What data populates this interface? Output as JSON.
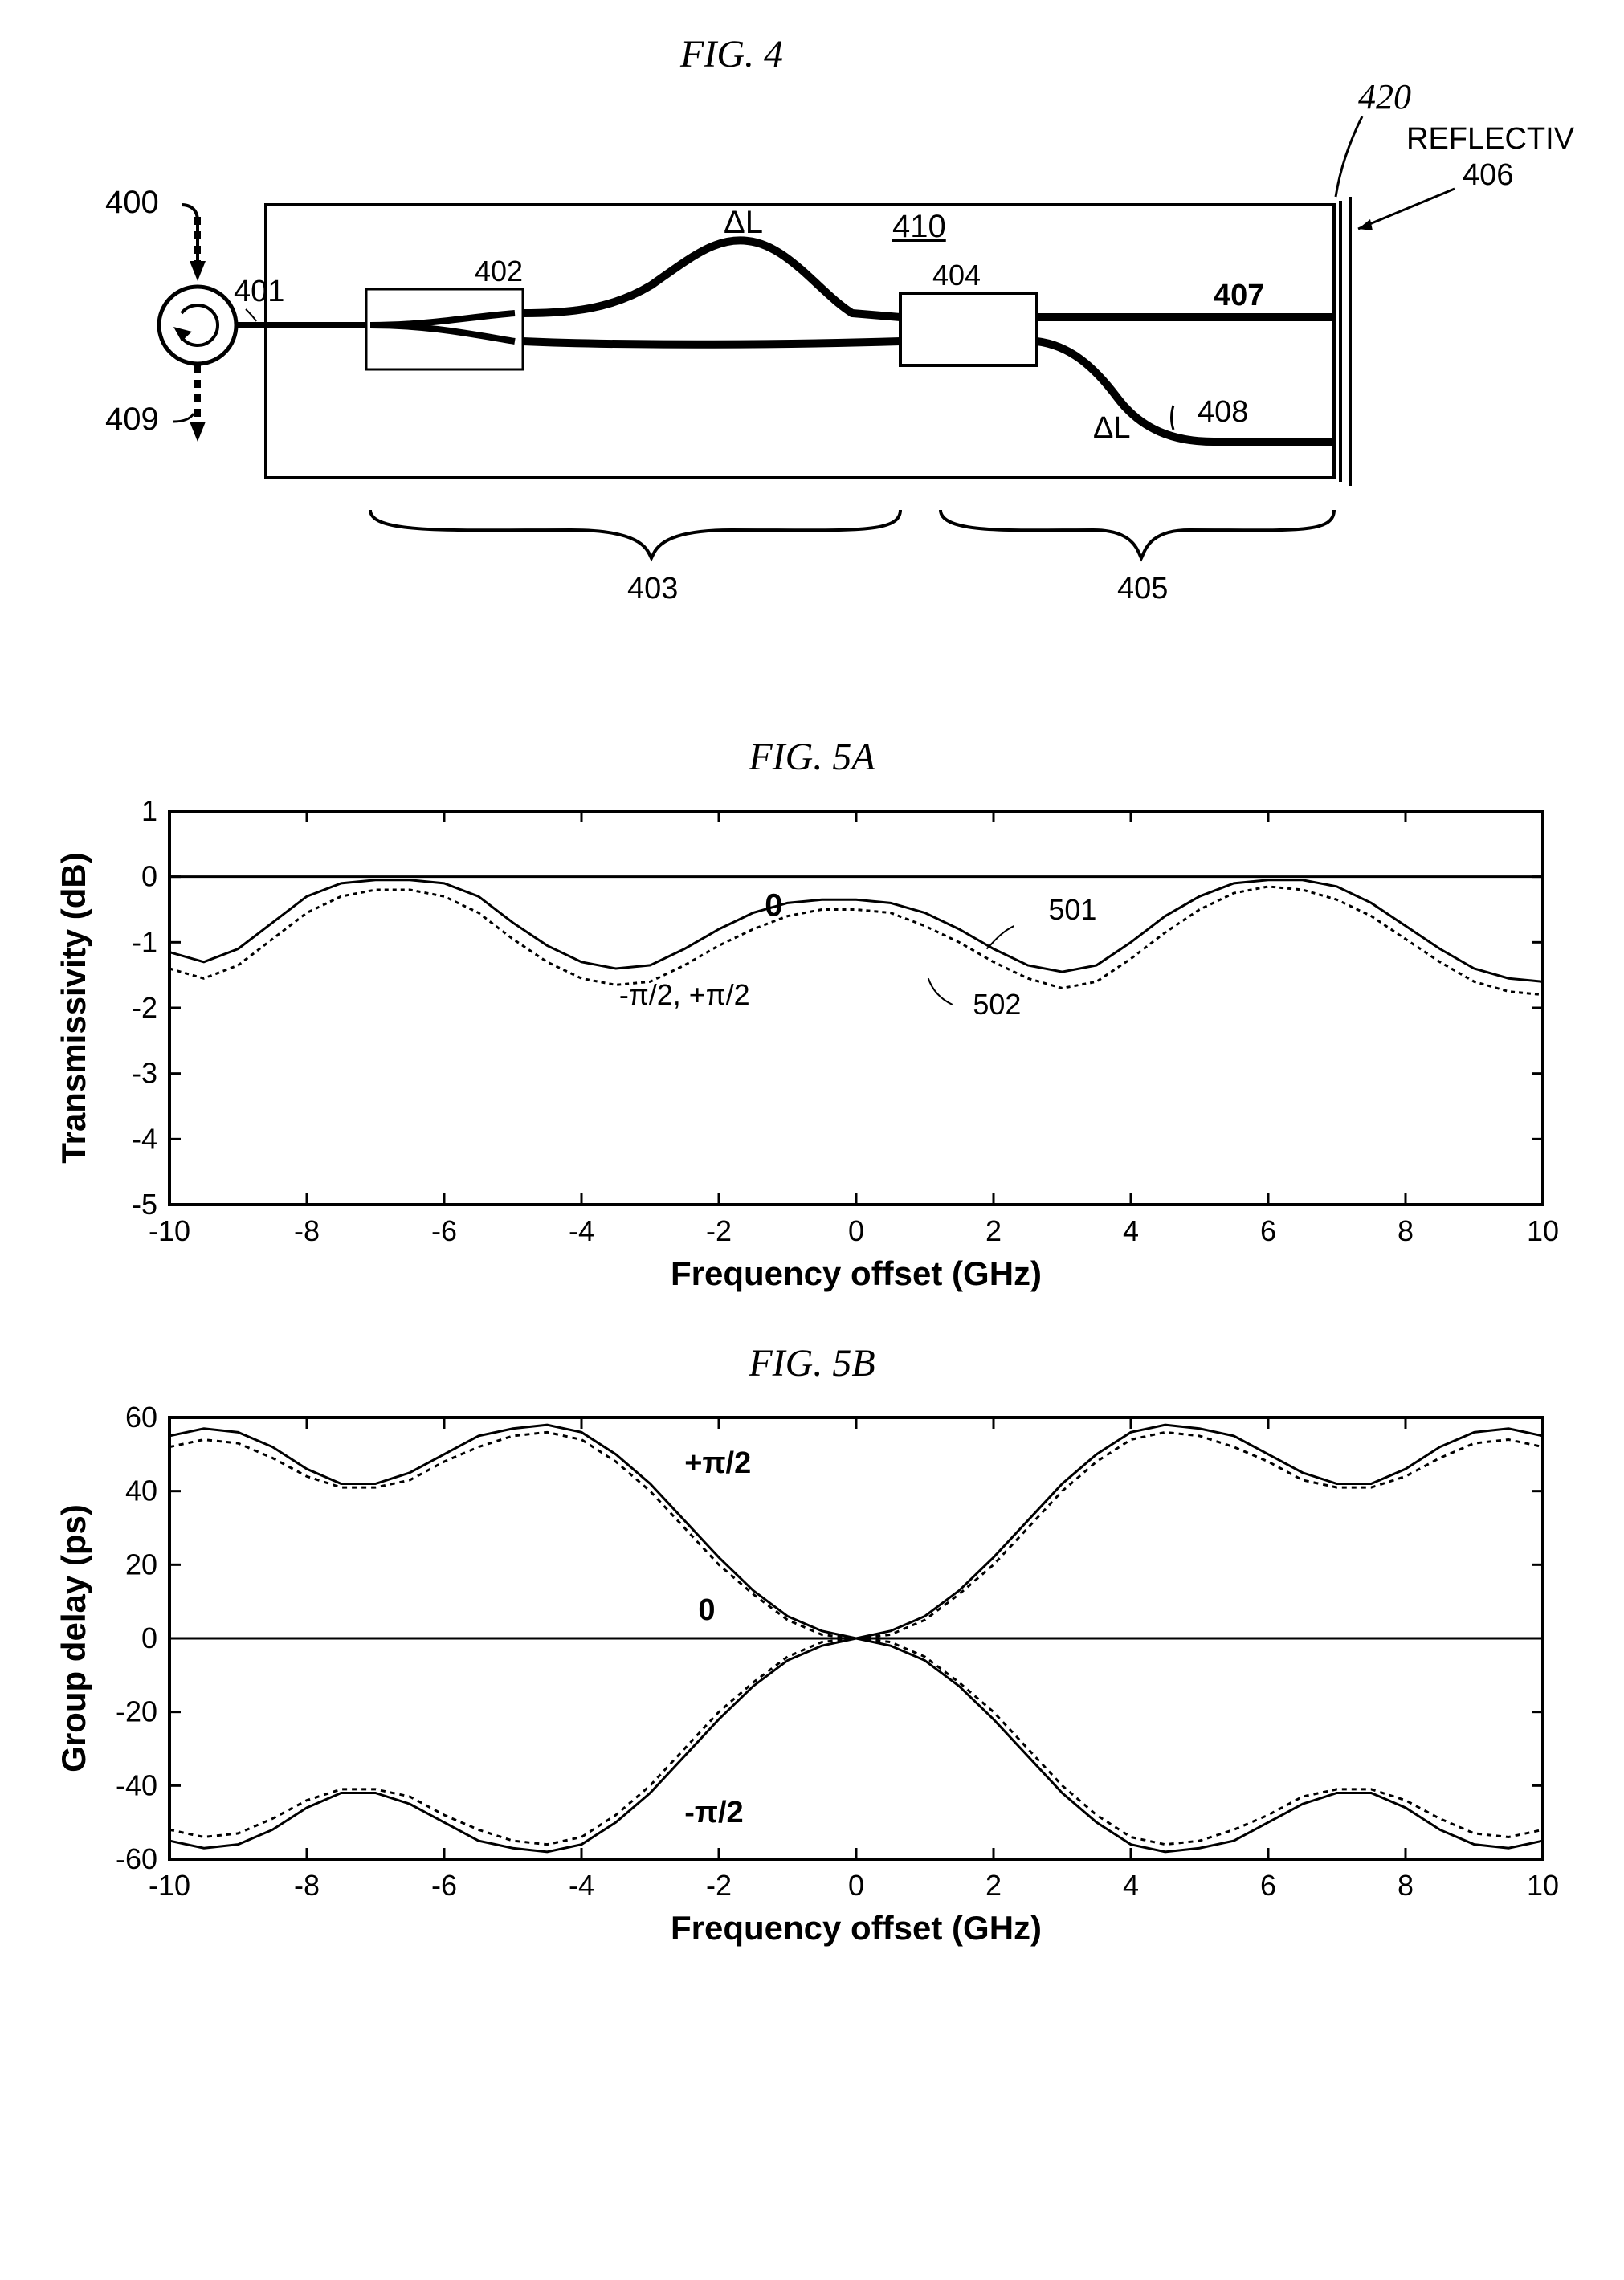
{
  "fig4": {
    "title": "FIG.  4",
    "labels": {
      "reflective_facet": "REFLECTIVE FACET",
      "reflective_facet_num": "406",
      "num_420": "420",
      "num_400": "400",
      "num_401": "401",
      "num_402": "402",
      "num_404": "404",
      "num_407": "407",
      "num_408": "408",
      "num_409": "409",
      "num_410": "410",
      "num_403": "403",
      "num_405": "405",
      "deltaL": "ΔL",
      "deltaL2": "ΔL"
    },
    "stroke_color": "#000000",
    "line_width_main": 8,
    "line_width_box": 3,
    "bg_color": "#ffffff"
  },
  "fig5a": {
    "title": "FIG. 5A",
    "xlabel": "Frequency offset (GHz)",
    "ylabel": "Transmissivity (dB)",
    "xlim": [
      -10,
      10
    ],
    "ylim": [
      -5,
      1
    ],
    "xtick_step": 2,
    "ytick_step": 1,
    "series": {
      "solid": {
        "label": "0",
        "color": "#000000",
        "dash": "none",
        "width": 3,
        "data": [
          [
            -10,
            -1.15
          ],
          [
            -9.5,
            -1.3
          ],
          [
            -9,
            -1.1
          ],
          [
            -8.5,
            -0.7
          ],
          [
            -8,
            -0.3
          ],
          [
            -7.5,
            -0.1
          ],
          [
            -7,
            -0.05
          ],
          [
            -6.5,
            -0.05
          ],
          [
            -6,
            -0.1
          ],
          [
            -5.5,
            -0.3
          ],
          [
            -5,
            -0.7
          ],
          [
            -4.5,
            -1.05
          ],
          [
            -4,
            -1.3
          ],
          [
            -3.5,
            -1.4
          ],
          [
            -3,
            -1.35
          ],
          [
            -2.5,
            -1.1
          ],
          [
            -2,
            -0.8
          ],
          [
            -1.5,
            -0.55
          ],
          [
            -1,
            -0.4
          ],
          [
            -0.5,
            -0.35
          ],
          [
            0,
            -0.35
          ],
          [
            0.5,
            -0.4
          ],
          [
            1,
            -0.55
          ],
          [
            1.5,
            -0.8
          ],
          [
            2,
            -1.1
          ],
          [
            2.5,
            -1.35
          ],
          [
            3,
            -1.45
          ],
          [
            3.5,
            -1.35
          ],
          [
            4,
            -1.0
          ],
          [
            4.5,
            -0.6
          ],
          [
            5,
            -0.3
          ],
          [
            5.5,
            -0.1
          ],
          [
            6,
            -0.05
          ],
          [
            6.5,
            -0.05
          ],
          [
            7,
            -0.15
          ],
          [
            7.5,
            -0.4
          ],
          [
            8,
            -0.75
          ],
          [
            8.5,
            -1.1
          ],
          [
            9,
            -1.4
          ],
          [
            9.5,
            -1.55
          ],
          [
            10,
            -1.6
          ]
        ]
      },
      "dashed": {
        "label": "-π/2, +π/2",
        "color": "#000000",
        "dash": "5,5",
        "width": 3,
        "data": [
          [
            -10,
            -1.4
          ],
          [
            -9.5,
            -1.55
          ],
          [
            -9,
            -1.35
          ],
          [
            -8.5,
            -0.95
          ],
          [
            -8,
            -0.55
          ],
          [
            -7.5,
            -0.3
          ],
          [
            -7,
            -0.2
          ],
          [
            -6.5,
            -0.2
          ],
          [
            -6,
            -0.3
          ],
          [
            -5.5,
            -0.55
          ],
          [
            -5,
            -0.95
          ],
          [
            -4.5,
            -1.3
          ],
          [
            -4,
            -1.55
          ],
          [
            -3.5,
            -1.65
          ],
          [
            -3,
            -1.6
          ],
          [
            -2.5,
            -1.35
          ],
          [
            -2,
            -1.05
          ],
          [
            -1.5,
            -0.8
          ],
          [
            -1,
            -0.6
          ],
          [
            -0.5,
            -0.5
          ],
          [
            0,
            -0.5
          ],
          [
            0.5,
            -0.55
          ],
          [
            1,
            -0.75
          ],
          [
            1.5,
            -1.0
          ],
          [
            2,
            -1.3
          ],
          [
            2.5,
            -1.55
          ],
          [
            3,
            -1.7
          ],
          [
            3.5,
            -1.6
          ],
          [
            4,
            -1.25
          ],
          [
            4.5,
            -0.85
          ],
          [
            5,
            -0.5
          ],
          [
            5.5,
            -0.25
          ],
          [
            6,
            -0.15
          ],
          [
            6.5,
            -0.2
          ],
          [
            7,
            -0.35
          ],
          [
            7.5,
            -0.6
          ],
          [
            8,
            -0.95
          ],
          [
            8.5,
            -1.3
          ],
          [
            9,
            -1.6
          ],
          [
            9.5,
            -1.75
          ],
          [
            10,
            -1.8
          ]
        ]
      }
    },
    "annotations": {
      "zero": "0",
      "pi": "-π/2, +π/2",
      "num_501": "501",
      "num_502": "502"
    },
    "axis_color": "#000000",
    "tick_fontsize": 36,
    "label_fontsize": 42,
    "annot_fontsize": 40
  },
  "fig5b": {
    "title": "FIG.  5B",
    "xlabel": "Frequency offset (GHz)",
    "ylabel": "Group delay (ps)",
    "xlim": [
      -10,
      10
    ],
    "ylim": [
      -60,
      60
    ],
    "xtick_step": 2,
    "ytick_step": 20,
    "series": {
      "cross1_solid": {
        "color": "#000000",
        "dash": "none",
        "width": 3,
        "data": [
          [
            -10,
            55
          ],
          [
            -9.5,
            57
          ],
          [
            -9,
            56
          ],
          [
            -8.5,
            52
          ],
          [
            -8,
            46
          ],
          [
            -7.5,
            42
          ],
          [
            -7,
            42
          ],
          [
            -6.5,
            45
          ],
          [
            -6,
            50
          ],
          [
            -5.5,
            55
          ],
          [
            -5,
            57
          ],
          [
            -4.5,
            58
          ],
          [
            -4,
            56
          ],
          [
            -3.5,
            50
          ],
          [
            -3,
            42
          ],
          [
            -2.5,
            32
          ],
          [
            -2,
            22
          ],
          [
            -1.5,
            13
          ],
          [
            -1,
            6
          ],
          [
            -0.5,
            2
          ],
          [
            0,
            0
          ],
          [
            0.5,
            -2
          ],
          [
            1,
            -6
          ],
          [
            1.5,
            -13
          ],
          [
            2,
            -22
          ],
          [
            2.5,
            -32
          ],
          [
            3,
            -42
          ],
          [
            3.5,
            -50
          ],
          [
            4,
            -56
          ],
          [
            4.5,
            -58
          ],
          [
            5,
            -57
          ],
          [
            5.5,
            -55
          ],
          [
            6,
            -50
          ],
          [
            6.5,
            -45
          ],
          [
            7,
            -42
          ],
          [
            7.5,
            -42
          ],
          [
            8,
            -46
          ],
          [
            8.5,
            -52
          ],
          [
            9,
            -56
          ],
          [
            9.5,
            -57
          ],
          [
            10,
            -55
          ]
        ]
      },
      "cross2_solid": {
        "color": "#000000",
        "dash": "none",
        "width": 3,
        "data": [
          [
            -10,
            -55
          ],
          [
            -9.5,
            -57
          ],
          [
            -9,
            -56
          ],
          [
            -8.5,
            -52
          ],
          [
            -8,
            -46
          ],
          [
            -7.5,
            -42
          ],
          [
            -7,
            -42
          ],
          [
            -6.5,
            -45
          ],
          [
            -6,
            -50
          ],
          [
            -5.5,
            -55
          ],
          [
            -5,
            -57
          ],
          [
            -4.5,
            -58
          ],
          [
            -4,
            -56
          ],
          [
            -3.5,
            -50
          ],
          [
            -3,
            -42
          ],
          [
            -2.5,
            -32
          ],
          [
            -2,
            -22
          ],
          [
            -1.5,
            -13
          ],
          [
            -1,
            -6
          ],
          [
            -0.5,
            -2
          ],
          [
            0,
            0
          ],
          [
            0.5,
            2
          ],
          [
            1,
            6
          ],
          [
            1.5,
            13
          ],
          [
            2,
            22
          ],
          [
            2.5,
            32
          ],
          [
            3,
            42
          ],
          [
            3.5,
            50
          ],
          [
            4,
            56
          ],
          [
            4.5,
            58
          ],
          [
            5,
            57
          ],
          [
            5.5,
            55
          ],
          [
            6,
            50
          ],
          [
            6.5,
            45
          ],
          [
            7,
            42
          ],
          [
            7.5,
            42
          ],
          [
            8,
            46
          ],
          [
            8.5,
            52
          ],
          [
            9,
            56
          ],
          [
            9.5,
            57
          ],
          [
            10,
            55
          ]
        ]
      },
      "cross1_dash": {
        "color": "#000000",
        "dash": "6,6",
        "width": 3,
        "data": [
          [
            -10,
            52
          ],
          [
            -9.5,
            54
          ],
          [
            -9,
            53
          ],
          [
            -8.5,
            49
          ],
          [
            -8,
            44
          ],
          [
            -7.5,
            41
          ],
          [
            -7,
            41
          ],
          [
            -6.5,
            43
          ],
          [
            -6,
            48
          ],
          [
            -5.5,
            52
          ],
          [
            -5,
            55
          ],
          [
            -4.5,
            56
          ],
          [
            -4,
            54
          ],
          [
            -3.5,
            48
          ],
          [
            -3,
            40
          ],
          [
            -2.5,
            30
          ],
          [
            -2,
            20
          ],
          [
            -1.5,
            12
          ],
          [
            -1,
            5
          ],
          [
            -0.5,
            1
          ],
          [
            0,
            0
          ],
          [
            0.5,
            -1
          ],
          [
            1,
            -5
          ],
          [
            1.5,
            -12
          ],
          [
            2,
            -20
          ],
          [
            2.5,
            -30
          ],
          [
            3,
            -40
          ],
          [
            3.5,
            -48
          ],
          [
            4,
            -54
          ],
          [
            4.5,
            -56
          ],
          [
            5,
            -55
          ],
          [
            5.5,
            -52
          ],
          [
            6,
            -48
          ],
          [
            6.5,
            -43
          ],
          [
            7,
            -41
          ],
          [
            7.5,
            -41
          ],
          [
            8,
            -44
          ],
          [
            8.5,
            -49
          ],
          [
            9,
            -53
          ],
          [
            9.5,
            -54
          ],
          [
            10,
            -52
          ]
        ]
      },
      "cross2_dash": {
        "color": "#000000",
        "dash": "6,6",
        "width": 3,
        "data": [
          [
            -10,
            -52
          ],
          [
            -9.5,
            -54
          ],
          [
            -9,
            -53
          ],
          [
            -8.5,
            -49
          ],
          [
            -8,
            -44
          ],
          [
            -7.5,
            -41
          ],
          [
            -7,
            -41
          ],
          [
            -6.5,
            -43
          ],
          [
            -6,
            -48
          ],
          [
            -5.5,
            -52
          ],
          [
            -5,
            -55
          ],
          [
            -4.5,
            -56
          ],
          [
            -4,
            -54
          ],
          [
            -3.5,
            -48
          ],
          [
            -3,
            -40
          ],
          [
            -2.5,
            -30
          ],
          [
            -2,
            -20
          ],
          [
            -1.5,
            -12
          ],
          [
            -1,
            -5
          ],
          [
            -0.5,
            -1
          ],
          [
            0,
            0
          ],
          [
            0.5,
            1
          ],
          [
            1,
            5
          ],
          [
            1.5,
            12
          ],
          [
            2,
            20
          ],
          [
            2.5,
            30
          ],
          [
            3,
            40
          ],
          [
            3.5,
            48
          ],
          [
            4,
            54
          ],
          [
            4.5,
            56
          ],
          [
            5,
            55
          ],
          [
            5.5,
            52
          ],
          [
            6,
            48
          ],
          [
            6.5,
            43
          ],
          [
            7,
            41
          ],
          [
            7.5,
            41
          ],
          [
            8,
            44
          ],
          [
            8.5,
            49
          ],
          [
            9,
            53
          ],
          [
            9.5,
            54
          ],
          [
            10,
            52
          ]
        ]
      },
      "zero_line": {
        "color": "#000000",
        "dash": "none",
        "width": 3,
        "data": [
          [
            -10,
            0
          ],
          [
            10,
            0
          ]
        ]
      }
    },
    "annotations": {
      "plus_pi": "+π/2",
      "minus_pi": "-π/2",
      "zero": "0"
    },
    "axis_color": "#000000",
    "tick_fontsize": 36,
    "label_fontsize": 42
  }
}
